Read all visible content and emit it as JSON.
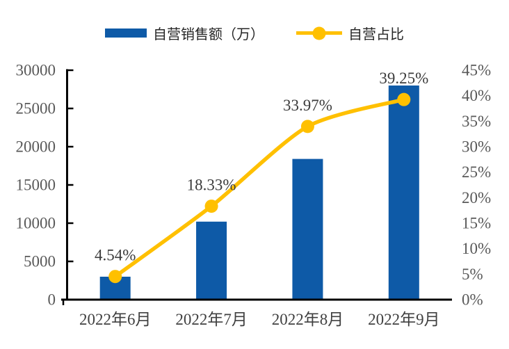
{
  "legend": {
    "items": [
      {
        "label": "自营销售额（万）"
      },
      {
        "label": "自营占比"
      }
    ]
  },
  "colors": {
    "bar": "#0E5AA7",
    "line": "#FFC000",
    "axis": "#000000",
    "tick_label": "#595959",
    "category_label": "#404040",
    "data_label": "#3B3B3B",
    "legend_text": "#262626",
    "background": "#FFFFFF"
  },
  "chart_data": {
    "type": "combo-bar-line",
    "title": "",
    "categories": [
      "2022年6月",
      "2022年7月",
      "2022年8月",
      "2022年9月"
    ],
    "series": [
      {
        "name": "自营销售额（万）",
        "type": "bar",
        "axis": "left",
        "values": [
          3000,
          10200,
          18400,
          28000
        ]
      },
      {
        "name": "自营占比",
        "type": "line",
        "axis": "right",
        "values": [
          4.54,
          18.33,
          33.97,
          39.25
        ],
        "labels": [
          "4.54%",
          "18.33%",
          "33.97%",
          "39.25%"
        ]
      }
    ],
    "left_axis": {
      "min": 0,
      "max": 30000,
      "step": 5000,
      "suffix": ""
    },
    "right_axis": {
      "min": 0,
      "max": 45,
      "step": 5,
      "suffix": "%"
    },
    "grid": false,
    "legend_position": "top"
  }
}
